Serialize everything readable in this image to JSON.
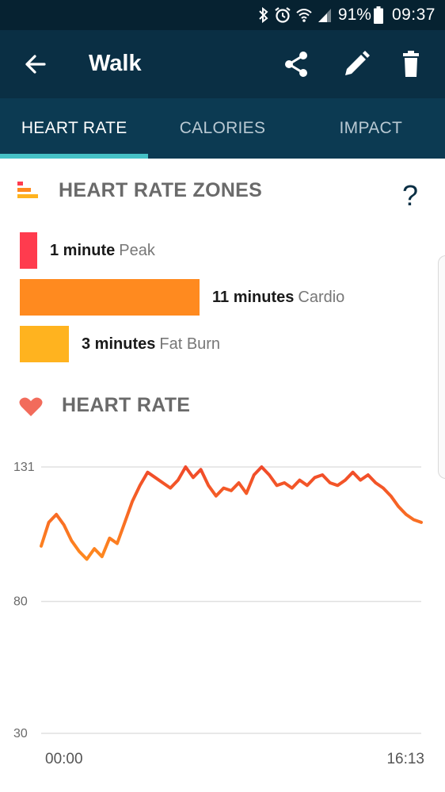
{
  "status_bar": {
    "battery_percent": "91%",
    "time": "09:37",
    "icons": [
      "bluetooth-icon",
      "alarm-icon",
      "wifi-icon",
      "signal-icon",
      "battery-icon"
    ]
  },
  "app_bar": {
    "title": "Walk",
    "actions": [
      "share-icon",
      "edit-icon",
      "delete-icon"
    ]
  },
  "tabs": [
    {
      "label": "HEART RATE",
      "active": true
    },
    {
      "label": "CALORIES",
      "active": false
    },
    {
      "label": "IMPACT",
      "active": false
    }
  ],
  "zones_section": {
    "title": "HEART RATE ZONES",
    "help": "?",
    "zones": [
      {
        "minutes": "1 minute",
        "name": "Peak",
        "value": 1,
        "color": "#ff3b4e"
      },
      {
        "minutes": "11 minutes",
        "name": "Cardio",
        "value": 11,
        "color": "#ff8a1f"
      },
      {
        "minutes": "3 minutes",
        "name": "Fat Burn",
        "value": 3,
        "color": "#ffb31f"
      }
    ]
  },
  "heart_rate_section": {
    "title": "HEART RATE"
  },
  "chart_data": {
    "type": "line",
    "yticks": [
      131,
      80,
      30
    ],
    "ylim": [
      30,
      131
    ],
    "xtick_labels": [
      "00:00",
      "16:13"
    ],
    "x": [
      0.0,
      0.02,
      0.04,
      0.06,
      0.08,
      0.1,
      0.12,
      0.14,
      0.16,
      0.18,
      0.2,
      0.22,
      0.24,
      0.26,
      0.28,
      0.3,
      0.32,
      0.34,
      0.36,
      0.38,
      0.4,
      0.42,
      0.44,
      0.46,
      0.48,
      0.5,
      0.52,
      0.54,
      0.56,
      0.58,
      0.6,
      0.62,
      0.64,
      0.66,
      0.68,
      0.7,
      0.72,
      0.74,
      0.76,
      0.78,
      0.8,
      0.82,
      0.84,
      0.86,
      0.88,
      0.9,
      0.92,
      0.94,
      0.96,
      0.98,
      1.0
    ],
    "values": [
      101,
      110,
      113,
      109,
      103,
      99,
      96,
      100,
      97,
      104,
      102,
      110,
      118,
      124,
      129,
      127,
      125,
      123,
      126,
      131,
      127,
      130,
      124,
      120,
      123,
      122,
      125,
      121,
      128,
      131,
      128,
      124,
      125,
      123,
      126,
      124,
      127,
      128,
      125,
      124,
      126,
      129,
      126,
      128,
      125,
      123,
      120,
      116,
      113,
      111,
      110
    ],
    "colors": {
      "start": "#ff8a1f",
      "end": "#f0492a",
      "grid": "#e0e0e0"
    }
  }
}
